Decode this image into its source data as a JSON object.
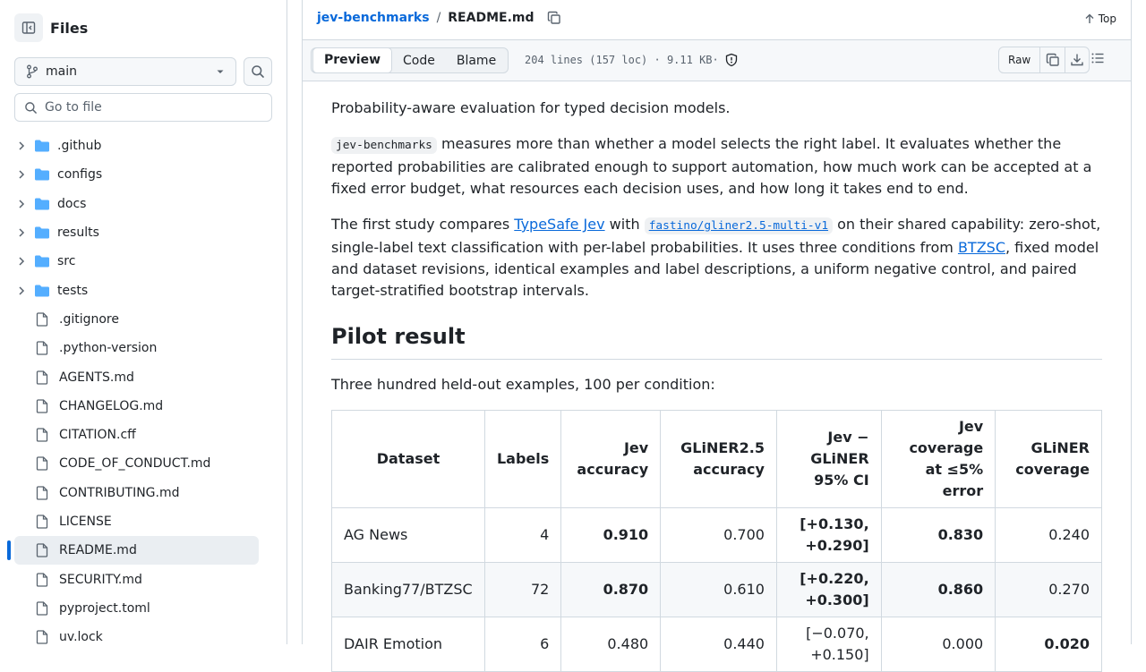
{
  "sidebar": {
    "title": "Files",
    "branch": "main",
    "goto_placeholder": "Go to file",
    "items": [
      {
        "name": ".github",
        "type": "dir"
      },
      {
        "name": "configs",
        "type": "dir"
      },
      {
        "name": "docs",
        "type": "dir"
      },
      {
        "name": "results",
        "type": "dir"
      },
      {
        "name": "src",
        "type": "dir"
      },
      {
        "name": "tests",
        "type": "dir"
      },
      {
        "name": ".gitignore",
        "type": "file"
      },
      {
        "name": ".python-version",
        "type": "file"
      },
      {
        "name": "AGENTS.md",
        "type": "file"
      },
      {
        "name": "CHANGELOG.md",
        "type": "file"
      },
      {
        "name": "CITATION.cff",
        "type": "file"
      },
      {
        "name": "CODE_OF_CONDUCT.md",
        "type": "file"
      },
      {
        "name": "CONTRIBUTING.md",
        "type": "file"
      },
      {
        "name": "LICENSE",
        "type": "file"
      },
      {
        "name": "README.md",
        "type": "file",
        "selected": true
      },
      {
        "name": "SECURITY.md",
        "type": "file"
      },
      {
        "name": "pyproject.toml",
        "type": "file"
      },
      {
        "name": "uv.lock",
        "type": "file"
      }
    ]
  },
  "header": {
    "repo": "jev-benchmarks",
    "separator": "/",
    "file": "README.md",
    "top_label": "Top"
  },
  "filebar": {
    "tabs": [
      "Preview",
      "Code",
      "Blame"
    ],
    "active_tab": "Preview",
    "info": "204 lines (157 loc) · 9.11 KB·",
    "raw_label": "Raw"
  },
  "readme": {
    "intro": "Probability-aware evaluation for typed decision models.",
    "p2_code": "jev-benchmarks",
    "p2_text": " measures more than whether a model selects the right label. It evaluates whether the reported probabilities are calibrated enough to support automation, how much work can be accepted at a fixed error budget, what resources each decision uses, and how long it takes end to end.",
    "p3_a": "The first study compares ",
    "p3_link1": "TypeSafe Jev",
    "p3_b": " with ",
    "p3_link2": "fastino/gliner2.5-multi-v1",
    "p3_c": " on their shared capability: zero-shot, single-label text classification with per-label probabilities. It uses three conditions from ",
    "p3_link3": "BTZSC",
    "p3_d": ", fixed model and dataset revisions, identical examples and label descriptions, a uniform negative control, and paired target-stratified bootstrap intervals.",
    "h2": "Pilot result",
    "table_intro": "Three hundred held-out examples, 100 per condition:",
    "table": {
      "headers": [
        "Dataset",
        "Labels",
        "Jev accuracy",
        "GLiNER2.5 accuracy",
        "Jev − GLiNER 95% CI",
        "Jev coverage at ≤5% error",
        "GLiNER coverage"
      ],
      "rows": [
        [
          "AG News",
          "4",
          "0.910",
          "0.700",
          "[+0.130, +0.290]",
          "0.830",
          "0.240"
        ],
        [
          "Banking77/BTZSC",
          "72",
          "0.870",
          "0.610",
          "[+0.220, +0.300]",
          "0.860",
          "0.270"
        ],
        [
          "DAIR Emotion",
          "6",
          "0.480",
          "0.440",
          "[−0.070, +0.150]",
          "0.000",
          "0.020"
        ]
      ]
    }
  }
}
